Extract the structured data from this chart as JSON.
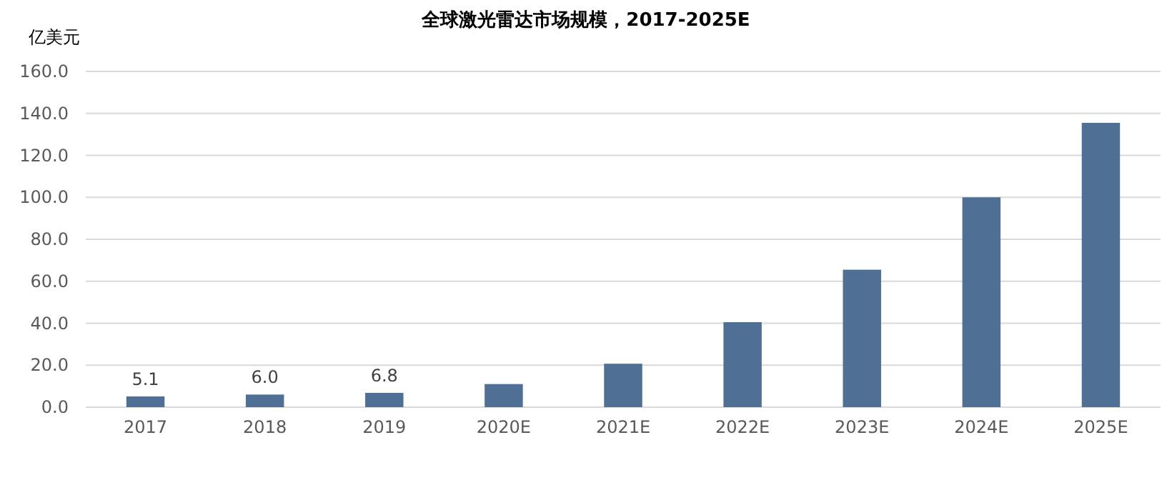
{
  "chart_data": {
    "type": "bar",
    "title": "全球激光雷达市场规模，2017-2025E",
    "ylabel": "亿美元",
    "categories": [
      "2017",
      "2018",
      "2019",
      "2020E",
      "2021E",
      "2022E",
      "2023E",
      "2024E",
      "2025E"
    ],
    "values": [
      5.1,
      6.0,
      6.8,
      11,
      20.7,
      40.5,
      65.5,
      100,
      135.5
    ],
    "value_labels": [
      "5.1",
      "6.0",
      "6.8",
      null,
      null,
      null,
      null,
      null,
      null
    ],
    "color": "#4f7094",
    "ylim": [
      0,
      160
    ],
    "yticks": [
      {
        "value": 0,
        "label": "0.0"
      },
      {
        "value": 20,
        "label": "20.0"
      },
      {
        "value": 40,
        "label": "40.0"
      },
      {
        "value": 60,
        "label": "60.0"
      },
      {
        "value": 80,
        "label": "80.0"
      },
      {
        "value": 100,
        "label": "100.0"
      },
      {
        "value": 120,
        "label": "120.0"
      },
      {
        "value": 140,
        "label": "140.0"
      },
      {
        "value": 160,
        "label": "160.0"
      }
    ],
    "grid": "y"
  }
}
